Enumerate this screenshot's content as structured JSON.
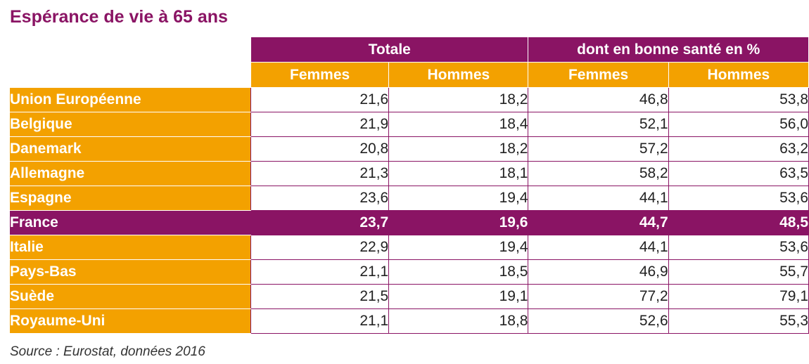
{
  "title": "Espérance de vie à 65 ans",
  "source": "Source : Eurostat, données 2016",
  "colors": {
    "accent": "#8a1464",
    "orange": "#f3a100"
  },
  "chart_data": {
    "type": "table",
    "title": "Espérance de vie à 65 ans",
    "column_groups": [
      {
        "label": "Totale",
        "columns": [
          "Femmes",
          "Hommes"
        ]
      },
      {
        "label": "dont en bonne santé en %",
        "columns": [
          "Femmes",
          "Hommes"
        ]
      }
    ],
    "rows": [
      {
        "country": "Union Européenne",
        "values": [
          "21,6",
          "18,2",
          "46,8",
          "53,8"
        ]
      },
      {
        "country": "Belgique",
        "values": [
          "21,9",
          "18,4",
          "52,1",
          "56,0"
        ]
      },
      {
        "country": "Danemark",
        "values": [
          "20,8",
          "18,2",
          "57,2",
          "63,2"
        ]
      },
      {
        "country": "Allemagne",
        "values": [
          "21,3",
          "18,1",
          "58,2",
          "63,5"
        ]
      },
      {
        "country": "Espagne",
        "values": [
          "23,6",
          "19,4",
          "44,1",
          "53,6"
        ]
      },
      {
        "country": "France",
        "values": [
          "23,7",
          "19,6",
          "44,7",
          "48,5"
        ],
        "highlight": true
      },
      {
        "country": "Italie",
        "values": [
          "22,9",
          "19,4",
          "44,1",
          "53,6"
        ]
      },
      {
        "country": "Pays-Bas",
        "values": [
          "21,1",
          "18,5",
          "46,9",
          "55,7"
        ]
      },
      {
        "country": "Suède",
        "values": [
          "21,5",
          "19,1",
          "77,2",
          "79,1"
        ]
      },
      {
        "country": "Royaume-Uni",
        "values": [
          "21,1",
          "18,8",
          "52,6",
          "55,3"
        ]
      }
    ]
  }
}
